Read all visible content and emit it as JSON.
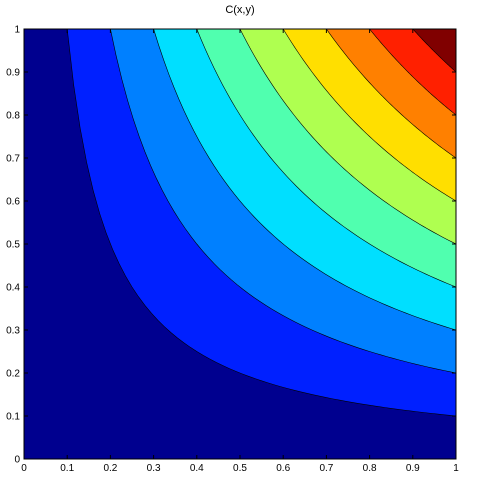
{
  "chart_data": {
    "type": "filled-contour",
    "title": "C(x,y)",
    "xlabel": "",
    "ylabel": "",
    "xlim": [
      0,
      1
    ],
    "ylim": [
      0,
      1
    ],
    "x_ticks": [
      "0",
      "0.1",
      "0.2",
      "0.3",
      "0.4",
      "0.5",
      "0.6",
      "0.7",
      "0.8",
      "0.9",
      "1"
    ],
    "y_ticks": [
      "0",
      "0.1",
      "0.2",
      "0.3",
      "0.4",
      "0.5",
      "0.6",
      "0.7",
      "0.8",
      "0.9",
      "1"
    ],
    "grid": false,
    "colorbar": false,
    "function_estimate": "C = x*y",
    "levels": [
      0.1,
      0.2,
      0.3,
      0.4,
      0.5,
      0.6,
      0.7,
      0.8,
      0.9
    ],
    "band_colors": [
      "#00008f",
      "#0020ff",
      "#0080ff",
      "#00dfff",
      "#50ffaf",
      "#afff50",
      "#ffdf00",
      "#ff8000",
      "#ff2000",
      "#800000"
    ],
    "contour_line_color": "#000000"
  }
}
